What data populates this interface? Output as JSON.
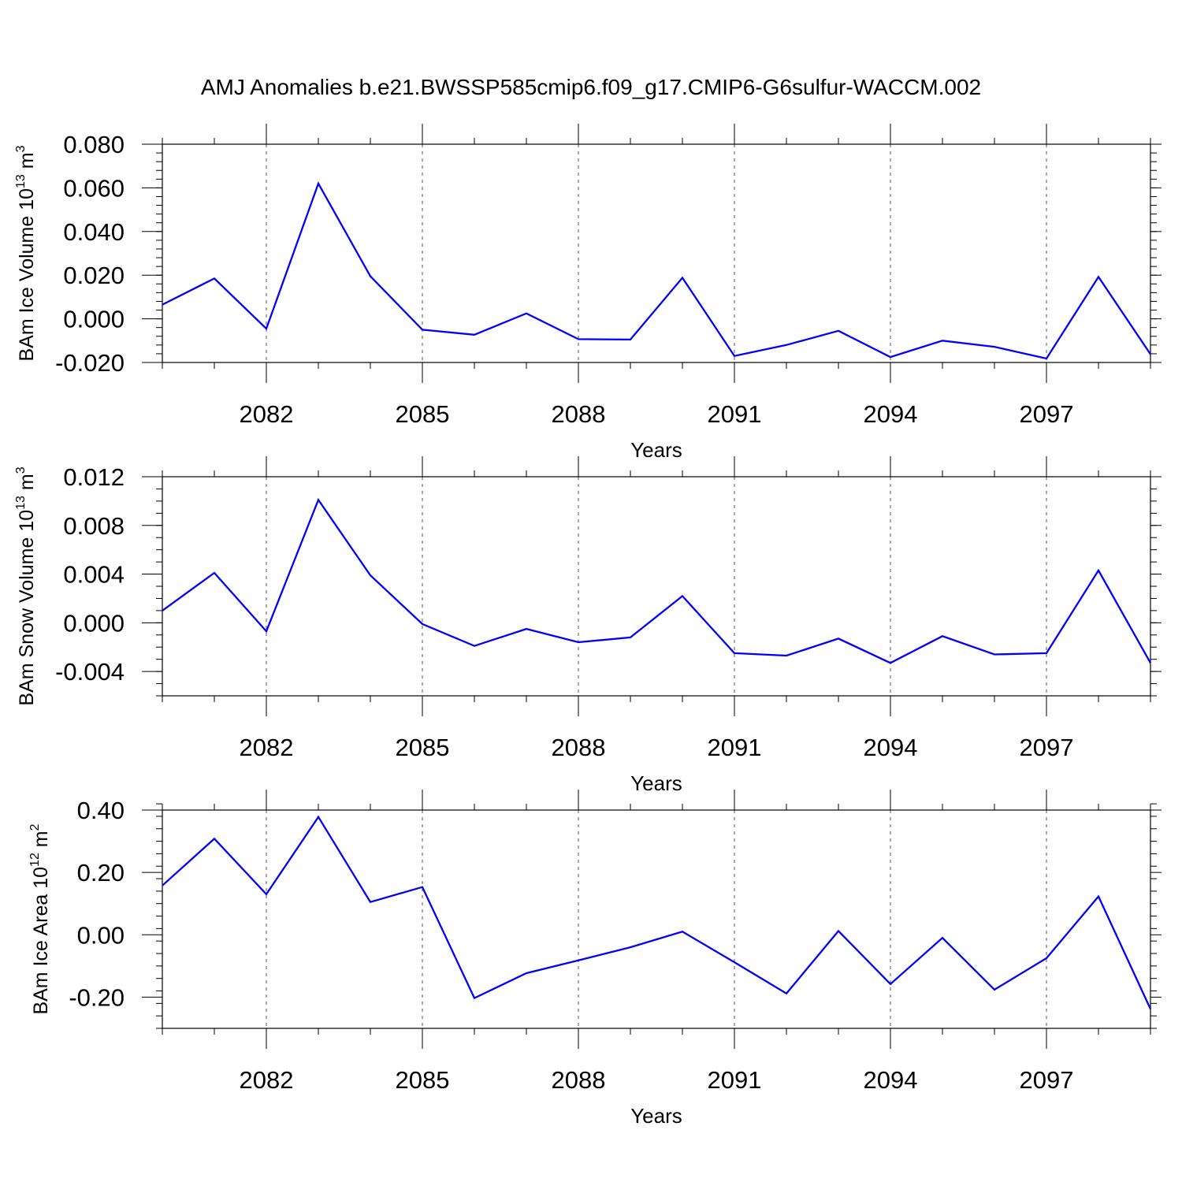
{
  "title": "AMJ Anomalies b.e21.BWSSP585cmip6.f09_g17.CMIP6-G6sulfur-WACCM.002",
  "line_color": "#0000ff",
  "chart_data": [
    {
      "type": "line",
      "ylabel": "BAm Ice Volume 10",
      "ylabel_sup": "13",
      "ylabel_unit": " m",
      "ylabel_unit_sup": "3",
      "xlabel": "Years",
      "xlim": [
        2080,
        2099
      ],
      "ylim": [
        -0.02,
        0.08
      ],
      "yticks": [
        -0.02,
        0.0,
        0.02,
        0.04,
        0.06,
        0.08
      ],
      "ytick_labels": [
        "-0.020",
        "0.000",
        "0.020",
        "0.040",
        "0.060",
        "0.080"
      ],
      "yminor_step": 0.004,
      "xticks": [
        2082,
        2085,
        2088,
        2091,
        2094,
        2097
      ],
      "xtick_labels": [
        "2082",
        "2085",
        "2088",
        "2091",
        "2094",
        "2097"
      ],
      "x": [
        2080,
        2081,
        2082,
        2083,
        2084,
        2085,
        2086,
        2087,
        2088,
        2089,
        2090,
        2091,
        2092,
        2093,
        2094,
        2095,
        2096,
        2097,
        2098,
        2099
      ],
      "series": [
        {
          "values": [
            0.0065,
            0.0185,
            -0.0045,
            0.062,
            0.0195,
            -0.005,
            -0.0073,
            0.0025,
            -0.0093,
            -0.0095,
            0.0188,
            -0.017,
            -0.012,
            -0.0055,
            -0.0175,
            -0.01,
            -0.0128,
            -0.0182,
            0.0192,
            -0.0162
          ]
        }
      ]
    },
    {
      "type": "line",
      "ylabel": "BAm Snow Volume 10",
      "ylabel_sup": "13",
      "ylabel_unit": " m",
      "ylabel_unit_sup": "3",
      "xlabel": "Years",
      "xlim": [
        2080,
        2099
      ],
      "ylim": [
        -0.006,
        0.012
      ],
      "yticks": [
        -0.004,
        0.0,
        0.004,
        0.008,
        0.012
      ],
      "ytick_labels": [
        "-0.004",
        "0.000",
        "0.004",
        "0.008",
        "0.012"
      ],
      "yminor_step": 0.001,
      "xticks": [
        2082,
        2085,
        2088,
        2091,
        2094,
        2097
      ],
      "xtick_labels": [
        "2082",
        "2085",
        "2088",
        "2091",
        "2094",
        "2097"
      ],
      "x": [
        2080,
        2081,
        2082,
        2083,
        2084,
        2085,
        2086,
        2087,
        2088,
        2089,
        2090,
        2091,
        2092,
        2093,
        2094,
        2095,
        2096,
        2097,
        2098,
        2099
      ],
      "series": [
        {
          "values": [
            0.001,
            0.0041,
            -0.0007,
            0.0101,
            0.0039,
            -0.0001,
            -0.0019,
            -0.0005,
            -0.0016,
            -0.0012,
            0.0022,
            -0.0025,
            -0.0027,
            -0.0013,
            -0.0033,
            -0.0011,
            -0.0026,
            -0.0025,
            0.0043,
            -0.0033
          ]
        }
      ]
    },
    {
      "type": "line",
      "ylabel": "BAm Ice Area 10",
      "ylabel_sup": "12",
      "ylabel_unit": " m",
      "ylabel_unit_sup": "2",
      "xlabel": "Years",
      "xlim": [
        2080,
        2099
      ],
      "ylim": [
        -0.3,
        0.4
      ],
      "yticks": [
        -0.2,
        0.0,
        0.2,
        0.4
      ],
      "ytick_labels": [
        "-0.20",
        "0.00",
        "0.20",
        "0.40"
      ],
      "yminor_step": 0.04,
      "xticks": [
        2082,
        2085,
        2088,
        2091,
        2094,
        2097
      ],
      "xtick_labels": [
        "2082",
        "2085",
        "2088",
        "2091",
        "2094",
        "2097"
      ],
      "x": [
        2080,
        2081,
        2082,
        2083,
        2084,
        2085,
        2086,
        2087,
        2088,
        2089,
        2090,
        2091,
        2092,
        2093,
        2094,
        2095,
        2096,
        2097,
        2098,
        2099
      ],
      "series": [
        {
          "values": [
            0.158,
            0.308,
            0.13,
            0.378,
            0.105,
            0.153,
            -0.203,
            -0.123,
            -0.082,
            -0.04,
            0.01,
            -0.088,
            -0.188,
            0.012,
            -0.158,
            -0.01,
            -0.176,
            -0.075,
            0.123,
            -0.238
          ]
        }
      ]
    }
  ]
}
